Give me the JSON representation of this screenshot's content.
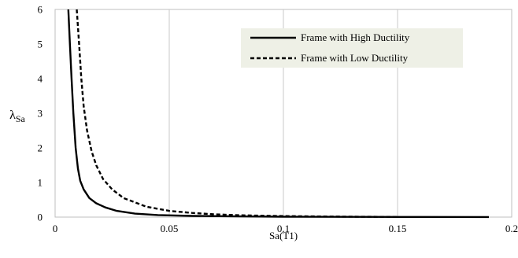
{
  "chart_data": {
    "type": "line",
    "title": "",
    "xlabel": "Sa(T1)",
    "ylabel": "λ",
    "ylabel_subscript": "Sa",
    "xlim": [
      0,
      0.2
    ],
    "ylim": [
      0,
      6
    ],
    "x_ticks": [
      "0",
      "0.05",
      "0.1",
      "0.15",
      "0.2"
    ],
    "x_tick_values": [
      0,
      0.05,
      0.1,
      0.15,
      0.2
    ],
    "y_ticks": [
      "0",
      "1",
      "2",
      "3",
      "4",
      "5",
      "6"
    ],
    "y_tick_values": [
      0,
      1,
      2,
      3,
      4,
      5,
      6
    ],
    "grid": "vertical",
    "legend_position": "top-right",
    "series": [
      {
        "name": "Frame with High Ductility",
        "style": "solid",
        "color": "#000000",
        "x": [
          0.0058,
          0.0065,
          0.0072,
          0.008,
          0.009,
          0.01,
          0.011,
          0.0125,
          0.015,
          0.018,
          0.022,
          0.027,
          0.035,
          0.045,
          0.06,
          0.08,
          0.1,
          0.13,
          0.16,
          0.19
        ],
        "y": [
          6.0,
          5.0,
          4.0,
          3.0,
          2.0,
          1.4,
          1.05,
          0.8,
          0.55,
          0.4,
          0.28,
          0.18,
          0.1,
          0.06,
          0.035,
          0.02,
          0.012,
          0.007,
          0.004,
          0.002
        ]
      },
      {
        "name": "Frame with Low Ductility",
        "style": "dashed",
        "color": "#000000",
        "x": [
          0.0095,
          0.0105,
          0.0115,
          0.0125,
          0.014,
          0.016,
          0.018,
          0.021,
          0.025,
          0.03,
          0.04,
          0.05,
          0.06,
          0.07,
          0.08,
          0.09,
          0.1,
          0.12,
          0.15
        ],
        "y": [
          6.0,
          5.0,
          4.0,
          3.2,
          2.5,
          1.9,
          1.5,
          1.1,
          0.8,
          0.55,
          0.3,
          0.18,
          0.12,
          0.08,
          0.055,
          0.04,
          0.03,
          0.015,
          0.005
        ]
      }
    ]
  }
}
